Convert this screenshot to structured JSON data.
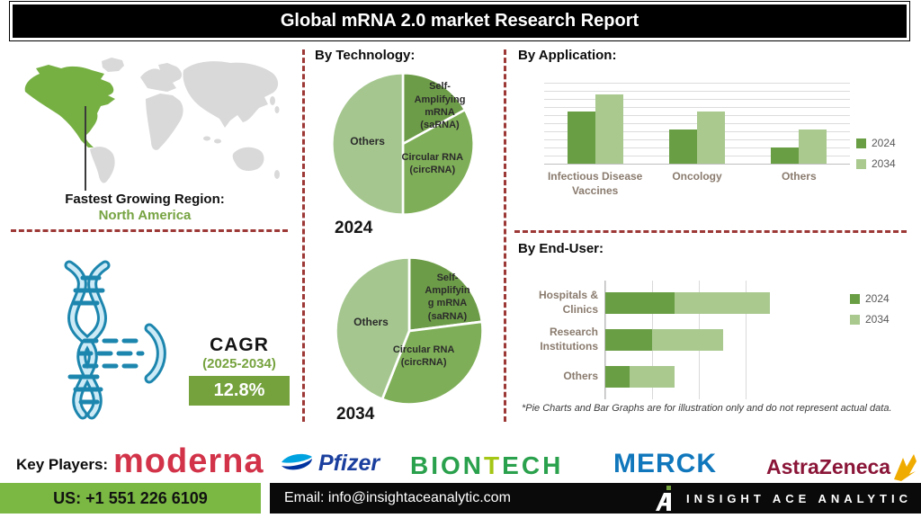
{
  "title": "Global mRNA 2.0 market Research Report",
  "map": {
    "region_label": "Fastest Growing Region:",
    "region_value": "North America",
    "highlight_color": "#76b043",
    "continent_color": "#d9d9d9"
  },
  "cagr": {
    "label": "CAGR",
    "period": "(2025-2034)",
    "value": "12.8%",
    "badge_color": "#76a23e"
  },
  "sections": {
    "technology_heading": "By Technology:",
    "application_heading": "By Application:",
    "enduser_heading": "By End-User:"
  },
  "note": "*Pie Charts and Bar Graphs are for illustration only and do not represent actual data.",
  "key_players": {
    "label": "Key Players:",
    "players": [
      "moderna",
      "Pfizer",
      "BIONTECH",
      "MERCK",
      "AstraZeneca"
    ]
  },
  "footer": {
    "phone": "US: +1 551 226 6109",
    "email": "Email: info@insightaceanalytic.com",
    "brand": "INSIGHT ACE ANALYTIC"
  },
  "colors": {
    "series_2024": "#699e44",
    "series_2034": "#a9c98f",
    "dashed_divider": "#9c3836",
    "pie_sarna": "#6d9c48",
    "pie_circrna": "#7fae58",
    "pie_others": "#a5c78f"
  },
  "chart_data": [
    {
      "id": "technology-2024",
      "type": "pie",
      "title": "2024",
      "labels": [
        "Self-\nAmplifying\nmRNA\n(saRNA)",
        "Circular RNA\n(circRNA)",
        "Others"
      ],
      "slice_names": [
        "sarna",
        "circrna",
        "others"
      ],
      "values": [
        17,
        33,
        50
      ],
      "colors": [
        "#6d9c48",
        "#7fae58",
        "#a5c78f"
      ]
    },
    {
      "id": "technology-2034",
      "type": "pie",
      "title": "2034",
      "labels": [
        "Self-\nAmplifyin\ng mRNA\n(saRNA)",
        "Circular RNA\n(circRNA)",
        "Others"
      ],
      "slice_names": [
        "sarna",
        "circrna",
        "others"
      ],
      "values": [
        23,
        33,
        44
      ],
      "colors": [
        "#6d9c48",
        "#7fae58",
        "#a5c78f"
      ]
    },
    {
      "id": "application",
      "type": "bar",
      "title": "By Application:",
      "categories": [
        "Infectious Disease\nVaccines",
        "Oncology",
        "Others"
      ],
      "series": [
        {
          "name": "2024",
          "values": [
            6.4,
            4.2,
            2.0
          ],
          "color": "#699e44"
        },
        {
          "name": "2034",
          "values": [
            8.6,
            6.4,
            4.2
          ],
          "color": "#a9c98f"
        }
      ],
      "ylim": [
        0,
        10
      ],
      "grid": true,
      "legend_position": "right"
    },
    {
      "id": "enduser",
      "type": "bar-horizontal-stacked",
      "title": "By End-User:",
      "categories": [
        "Hospitals &\nClinics",
        "Research\nInstitutions",
        "Others"
      ],
      "series": [
        {
          "name": "2024",
          "values": [
            3.7,
            2.5,
            1.3
          ],
          "color": "#699e44"
        },
        {
          "name": "2034",
          "values": [
            5.1,
            3.8,
            2.4
          ],
          "color": "#a9c98f"
        }
      ],
      "xlim": [
        0,
        10
      ],
      "grid": true,
      "legend_position": "right"
    }
  ]
}
